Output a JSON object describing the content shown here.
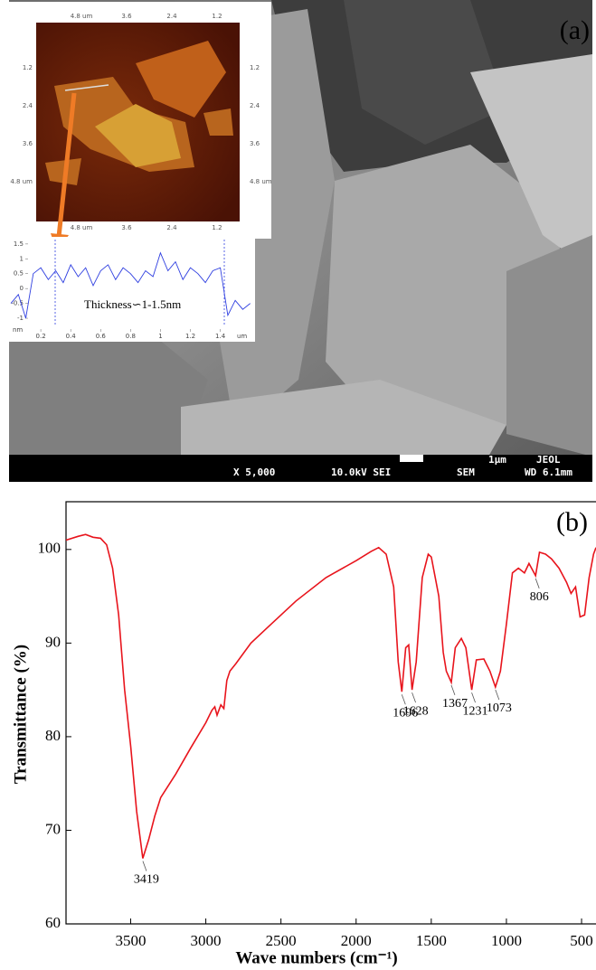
{
  "panel_a": {
    "label": "(a)",
    "sem_info": {
      "magnification": "X 5,000",
      "voltage": "10.0kV SEI",
      "mode": "SEM",
      "scale": "1μm",
      "maker": "JEOL",
      "wd": "WD 6.1mm"
    },
    "afm": {
      "top_ticks": [
        "4.8 um",
        "3.6",
        "2.4",
        "1.2"
      ],
      "bottom_ticks": [
        "4.8 um",
        "3.6",
        "2.4",
        "1.2"
      ],
      "left_ticks": [
        "1.2",
        "2.4",
        "3.6",
        "4.8 um"
      ],
      "right_ticks": [
        "1.2",
        "2.4",
        "3.6",
        "4.8 um"
      ]
    }
  },
  "chart_data": [
    {
      "type": "line",
      "annotation": "Thickness∽1-1.5nm",
      "x_unit": "um",
      "y_unit": "nm",
      "color": "#2f3fe0",
      "x": [
        0,
        0.05,
        0.1,
        0.15,
        0.2,
        0.25,
        0.3,
        0.35,
        0.4,
        0.45,
        0.5,
        0.55,
        0.6,
        0.65,
        0.7,
        0.75,
        0.8,
        0.85,
        0.9,
        0.95,
        1.0,
        1.05,
        1.1,
        1.15,
        1.2,
        1.25,
        1.3,
        1.35,
        1.4,
        1.45,
        1.5,
        1.55,
        1.6
      ],
      "values": [
        -0.5,
        -0.2,
        -1.0,
        0.5,
        0.7,
        0.3,
        0.6,
        0.2,
        0.8,
        0.4,
        0.7,
        0.1,
        0.6,
        0.8,
        0.3,
        0.7,
        0.5,
        0.2,
        0.6,
        0.4,
        1.2,
        0.6,
        0.9,
        0.3,
        0.7,
        0.5,
        0.2,
        0.6,
        0.7,
        -0.9,
        -0.4,
        -0.7,
        -0.5
      ],
      "xlim": [
        0,
        1.62
      ],
      "ylim": [
        -1.79,
        1.74
      ],
      "xticks": [
        0.2,
        0.4,
        0.6,
        0.8,
        1,
        1.2,
        1.4
      ],
      "yticks": [
        1.5,
        1,
        0.5,
        0,
        -0.5,
        -1
      ]
    },
    {
      "type": "line",
      "label": "(b)",
      "x_label": "Wave numbers (cm⁻¹)",
      "y_label": "Transmittance (%)",
      "color": "#e8141c",
      "x": [
        3930,
        3850,
        3800,
        3750,
        3700,
        3660,
        3620,
        3580,
        3540,
        3500,
        3460,
        3419,
        3380,
        3340,
        3300,
        3200,
        3100,
        3000,
        2960,
        2940,
        2925,
        2900,
        2880,
        2860,
        2840,
        2800,
        2700,
        2600,
        2400,
        2200,
        2000,
        1900,
        1850,
        1800,
        1750,
        1720,
        1696,
        1670,
        1650,
        1628,
        1600,
        1560,
        1520,
        1500,
        1450,
        1420,
        1400,
        1367,
        1340,
        1300,
        1270,
        1231,
        1200,
        1150,
        1110,
        1073,
        1040,
        1000,
        960,
        920,
        880,
        850,
        806,
        780,
        740,
        700,
        650,
        600,
        570,
        540,
        510,
        480,
        450,
        420,
        404
      ],
      "values": [
        101,
        101.4,
        101.6,
        101.3,
        101.2,
        100.5,
        98,
        93,
        85,
        79,
        72,
        67,
        69,
        71.5,
        73.5,
        76,
        78.8,
        81.5,
        82.8,
        83.2,
        82.3,
        83.4,
        83,
        86,
        87,
        87.8,
        90,
        91.5,
        94.5,
        97,
        98.8,
        99.8,
        100.2,
        99.5,
        96,
        88,
        84.8,
        89.5,
        89.8,
        85,
        88,
        97,
        99.5,
        99.2,
        95,
        89,
        87,
        85.8,
        89.5,
        90.5,
        89.5,
        85,
        88.2,
        88.3,
        87,
        85.3,
        87,
        92,
        97.5,
        98,
        97.5,
        98.5,
        97.2,
        99.7,
        99.5,
        99,
        98,
        96.5,
        95.3,
        96,
        92.8,
        93,
        97,
        99.5,
        100.2
      ],
      "peak_labels": [
        3419,
        1696,
        1628,
        1367,
        1231,
        1073,
        806
      ],
      "xlim": [
        3930,
        404
      ],
      "ylim": [
        60,
        105.1
      ],
      "xticks": [
        3500,
        3000,
        2500,
        2000,
        1500,
        1000,
        500
      ],
      "yticks": [
        60,
        70,
        80,
        90,
        100
      ]
    }
  ]
}
